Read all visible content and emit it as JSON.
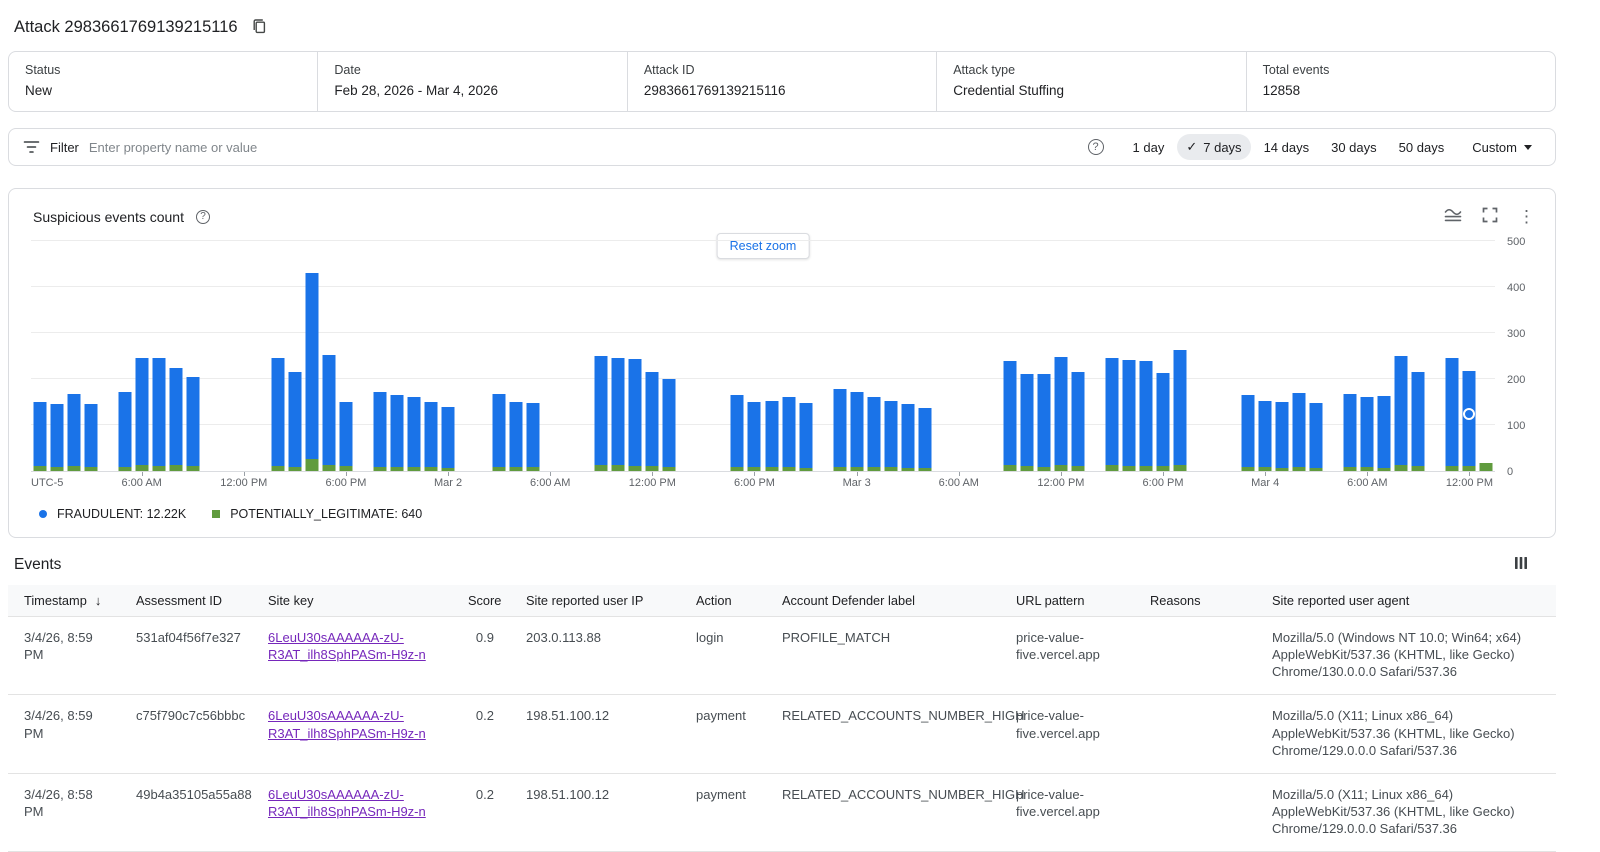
{
  "page": {
    "title": "Attack 2983661769139215116"
  },
  "summary": {
    "items": [
      {
        "label": "Status",
        "value": "New"
      },
      {
        "label": "Date",
        "value": "Feb 28, 2026 - Mar 4, 2026"
      },
      {
        "label": "Attack ID",
        "value": "2983661769139215116"
      },
      {
        "label": "Attack type",
        "value": "Credential Stuffing"
      },
      {
        "label": "Total events",
        "value": "12858"
      }
    ]
  },
  "filter": {
    "label": "Filter",
    "placeholder": "Enter property name or value",
    "ranges": [
      "1 day",
      "7 days",
      "14 days",
      "30 days",
      "50 days"
    ],
    "selected_range": "7 days",
    "check_glyph": "✓",
    "custom_label": "Custom"
  },
  "colors": {
    "fraudulent_blue": "#1a73e8",
    "legitimate_green": "#609b3e",
    "link_purple": "#7627bb",
    "reset_zoom_blue": "#1a73e8"
  },
  "chart_data": {
    "type": "bar",
    "stacked": true,
    "title": "Suspicious events count",
    "reset_zoom_label": "Reset zoom",
    "ylim": [
      0,
      500
    ],
    "y_ticks": [
      0,
      100,
      200,
      300,
      400,
      500
    ],
    "total_slots": 86,
    "x_ticks": [
      {
        "slot": 0,
        "label": "UTC-5"
      },
      {
        "slot": 6,
        "label": "6:00 AM"
      },
      {
        "slot": 12,
        "label": "12:00 PM"
      },
      {
        "slot": 18,
        "label": "6:00 PM"
      },
      {
        "slot": 24,
        "label": "Mar 2"
      },
      {
        "slot": 30,
        "label": "6:00 AM"
      },
      {
        "slot": 36,
        "label": "12:00 PM"
      },
      {
        "slot": 42,
        "label": "6:00 PM"
      },
      {
        "slot": 48,
        "label": "Mar 3"
      },
      {
        "slot": 54,
        "label": "6:00 AM"
      },
      {
        "slot": 60,
        "label": "12:00 PM"
      },
      {
        "slot": 66,
        "label": "6:00 PM"
      },
      {
        "slot": 72,
        "label": "Mar 4"
      },
      {
        "slot": 78,
        "label": "6:00 AM"
      },
      {
        "slot": 84,
        "label": "12:00 PM"
      }
    ],
    "series_meta": [
      {
        "name": "FRAUDULENT",
        "legend_label": "FRAUDULENT: 12.22K",
        "color": "#1a73e8",
        "shape": "circle"
      },
      {
        "name": "POTENTIALLY_LEGITIMATE",
        "legend_label": "POTENTIALLY_LEGITIMATE: 640",
        "color": "#609b3e",
        "shape": "square"
      }
    ],
    "bars": [
      {
        "slot": 0,
        "fraudulent": 140,
        "potentially_legitimate": 10
      },
      {
        "slot": 1,
        "fraudulent": 137,
        "potentially_legitimate": 8
      },
      {
        "slot": 2,
        "fraudulent": 158,
        "potentially_legitimate": 10
      },
      {
        "slot": 3,
        "fraudulent": 136,
        "potentially_legitimate": 9
      },
      {
        "slot": 5,
        "fraudulent": 164,
        "potentially_legitimate": 8
      },
      {
        "slot": 6,
        "fraudulent": 233,
        "potentially_legitimate": 12
      },
      {
        "slot": 7,
        "fraudulent": 235,
        "potentially_legitimate": 10
      },
      {
        "slot": 8,
        "fraudulent": 213,
        "potentially_legitimate": 12
      },
      {
        "slot": 9,
        "fraudulent": 195,
        "potentially_legitimate": 10
      },
      {
        "slot": 14,
        "fraudulent": 235,
        "potentially_legitimate": 10
      },
      {
        "slot": 15,
        "fraudulent": 207,
        "potentially_legitimate": 8
      },
      {
        "slot": 16,
        "fraudulent": 404,
        "potentially_legitimate": 26
      },
      {
        "slot": 17,
        "fraudulent": 240,
        "potentially_legitimate": 12
      },
      {
        "slot": 18,
        "fraudulent": 140,
        "potentially_legitimate": 10
      },
      {
        "slot": 20,
        "fraudulent": 164,
        "potentially_legitimate": 8
      },
      {
        "slot": 21,
        "fraudulent": 157,
        "potentially_legitimate": 8
      },
      {
        "slot": 22,
        "fraudulent": 154,
        "potentially_legitimate": 8
      },
      {
        "slot": 23,
        "fraudulent": 142,
        "potentially_legitimate": 8
      },
      {
        "slot": 24,
        "fraudulent": 134,
        "potentially_legitimate": 6
      },
      {
        "slot": 27,
        "fraudulent": 160,
        "potentially_legitimate": 8
      },
      {
        "slot": 28,
        "fraudulent": 141,
        "potentially_legitimate": 9
      },
      {
        "slot": 29,
        "fraudulent": 140,
        "potentially_legitimate": 8
      },
      {
        "slot": 33,
        "fraudulent": 238,
        "potentially_legitimate": 12
      },
      {
        "slot": 34,
        "fraudulent": 233,
        "potentially_legitimate": 12
      },
      {
        "slot": 35,
        "fraudulent": 233,
        "potentially_legitimate": 10
      },
      {
        "slot": 36,
        "fraudulent": 205,
        "potentially_legitimate": 10
      },
      {
        "slot": 37,
        "fraudulent": 192,
        "potentially_legitimate": 8
      },
      {
        "slot": 41,
        "fraudulent": 157,
        "potentially_legitimate": 8
      },
      {
        "slot": 42,
        "fraudulent": 142,
        "potentially_legitimate": 8
      },
      {
        "slot": 43,
        "fraudulent": 144,
        "potentially_legitimate": 8
      },
      {
        "slot": 44,
        "fraudulent": 152,
        "potentially_legitimate": 8
      },
      {
        "slot": 45,
        "fraudulent": 141,
        "potentially_legitimate": 7
      },
      {
        "slot": 47,
        "fraudulent": 169,
        "potentially_legitimate": 9
      },
      {
        "slot": 48,
        "fraudulent": 164,
        "potentially_legitimate": 8
      },
      {
        "slot": 49,
        "fraudulent": 152,
        "potentially_legitimate": 8
      },
      {
        "slot": 50,
        "fraudulent": 145,
        "potentially_legitimate": 8
      },
      {
        "slot": 51,
        "fraudulent": 139,
        "potentially_legitimate": 7
      },
      {
        "slot": 52,
        "fraudulent": 132,
        "potentially_legitimate": 6
      },
      {
        "slot": 57,
        "fraudulent": 228,
        "potentially_legitimate": 12
      },
      {
        "slot": 58,
        "fraudulent": 202,
        "potentially_legitimate": 10
      },
      {
        "slot": 59,
        "fraudulent": 203,
        "potentially_legitimate": 9
      },
      {
        "slot": 60,
        "fraudulent": 236,
        "potentially_legitimate": 12
      },
      {
        "slot": 61,
        "fraudulent": 205,
        "potentially_legitimate": 10
      },
      {
        "slot": 63,
        "fraudulent": 233,
        "potentially_legitimate": 12
      },
      {
        "slot": 64,
        "fraudulent": 231,
        "potentially_legitimate": 11
      },
      {
        "slot": 65,
        "fraudulent": 229,
        "potentially_legitimate": 11
      },
      {
        "slot": 66,
        "fraudulent": 204,
        "potentially_legitimate": 10
      },
      {
        "slot": 67,
        "fraudulent": 250,
        "potentially_legitimate": 12
      },
      {
        "slot": 71,
        "fraudulent": 157,
        "potentially_legitimate": 8
      },
      {
        "slot": 72,
        "fraudulent": 144,
        "potentially_legitimate": 8
      },
      {
        "slot": 73,
        "fraudulent": 143,
        "potentially_legitimate": 7
      },
      {
        "slot": 74,
        "fraudulent": 161,
        "potentially_legitimate": 9
      },
      {
        "slot": 75,
        "fraudulent": 141,
        "potentially_legitimate": 7
      },
      {
        "slot": 77,
        "fraudulent": 160,
        "potentially_legitimate": 8
      },
      {
        "slot": 78,
        "fraudulent": 154,
        "potentially_legitimate": 8
      },
      {
        "slot": 79,
        "fraudulent": 155,
        "potentially_legitimate": 7
      },
      {
        "slot": 80,
        "fraudulent": 238,
        "potentially_legitimate": 12
      },
      {
        "slot": 81,
        "fraudulent": 205,
        "potentially_legitimate": 10
      },
      {
        "slot": 83,
        "fraudulent": 234,
        "potentially_legitimate": 11
      },
      {
        "slot": 84,
        "fraudulent": 208,
        "potentially_legitimate": 10
      },
      {
        "slot": 85,
        "fraudulent": 0,
        "potentially_legitimate": 18
      }
    ],
    "marker": {
      "slot": 84,
      "value": 125
    }
  },
  "events": {
    "title": "Events",
    "columns": [
      {
        "key": "timestamp",
        "label": "Timestamp",
        "sorted_desc": true
      },
      {
        "key": "assessment_id",
        "label": "Assessment ID"
      },
      {
        "key": "site_key",
        "label": "Site key"
      },
      {
        "key": "score",
        "label": "Score"
      },
      {
        "key": "user_ip",
        "label": "Site reported user IP"
      },
      {
        "key": "action",
        "label": "Action"
      },
      {
        "key": "account_defender_label",
        "label": "Account Defender label"
      },
      {
        "key": "url_pattern",
        "label": "URL pattern"
      },
      {
        "key": "reasons",
        "label": "Reasons"
      },
      {
        "key": "user_agent",
        "label": "Site reported user agent"
      }
    ],
    "rows": [
      {
        "timestamp": "3/4/26, 8:59 PM",
        "assessment_id": "531af04f56f7e327",
        "site_key": "6LeuU30sAAAAAA-zU-R3AT_ilh8SphPASm-H9z-n",
        "score": "0.9",
        "user_ip": "203.0.113.88",
        "action": "login",
        "account_defender_label": "PROFILE_MATCH",
        "url_pattern": "price-value-five.vercel.app",
        "reasons": "",
        "user_agent": "Mozilla/5.0 (Windows NT 10.0; Win64; x64) AppleWebKit/537.36 (KHTML, like Gecko) Chrome/130.0.0.0 Safari/537.36"
      },
      {
        "timestamp": "3/4/26, 8:59 PM",
        "assessment_id": "c75f790c7c56bbbc",
        "site_key": "6LeuU30sAAAAAA-zU-R3AT_ilh8SphPASm-H9z-n",
        "score": "0.2",
        "user_ip": "198.51.100.12",
        "action": "payment",
        "account_defender_label": "RELATED_ACCOUNTS_NUMBER_HIGH",
        "url_pattern": "price-value-five.vercel.app",
        "reasons": "",
        "user_agent": "Mozilla/5.0 (X11; Linux x86_64) AppleWebKit/537.36 (KHTML, like Gecko) Chrome/129.0.0.0 Safari/537.36"
      },
      {
        "timestamp": "3/4/26, 8:58 PM",
        "assessment_id": "49b4a35105a55a88",
        "site_key": "6LeuU30sAAAAAA-zU-R3AT_ilh8SphPASm-H9z-n",
        "score": "0.2",
        "user_ip": "198.51.100.12",
        "action": "payment",
        "account_defender_label": "RELATED_ACCOUNTS_NUMBER_HIGH",
        "url_pattern": "price-value-five.vercel.app",
        "reasons": "",
        "user_agent": "Mozilla/5.0 (X11; Linux x86_64) AppleWebKit/537.36 (KHTML, like Gecko) Chrome/129.0.0.0 Safari/537.36"
      }
    ]
  }
}
